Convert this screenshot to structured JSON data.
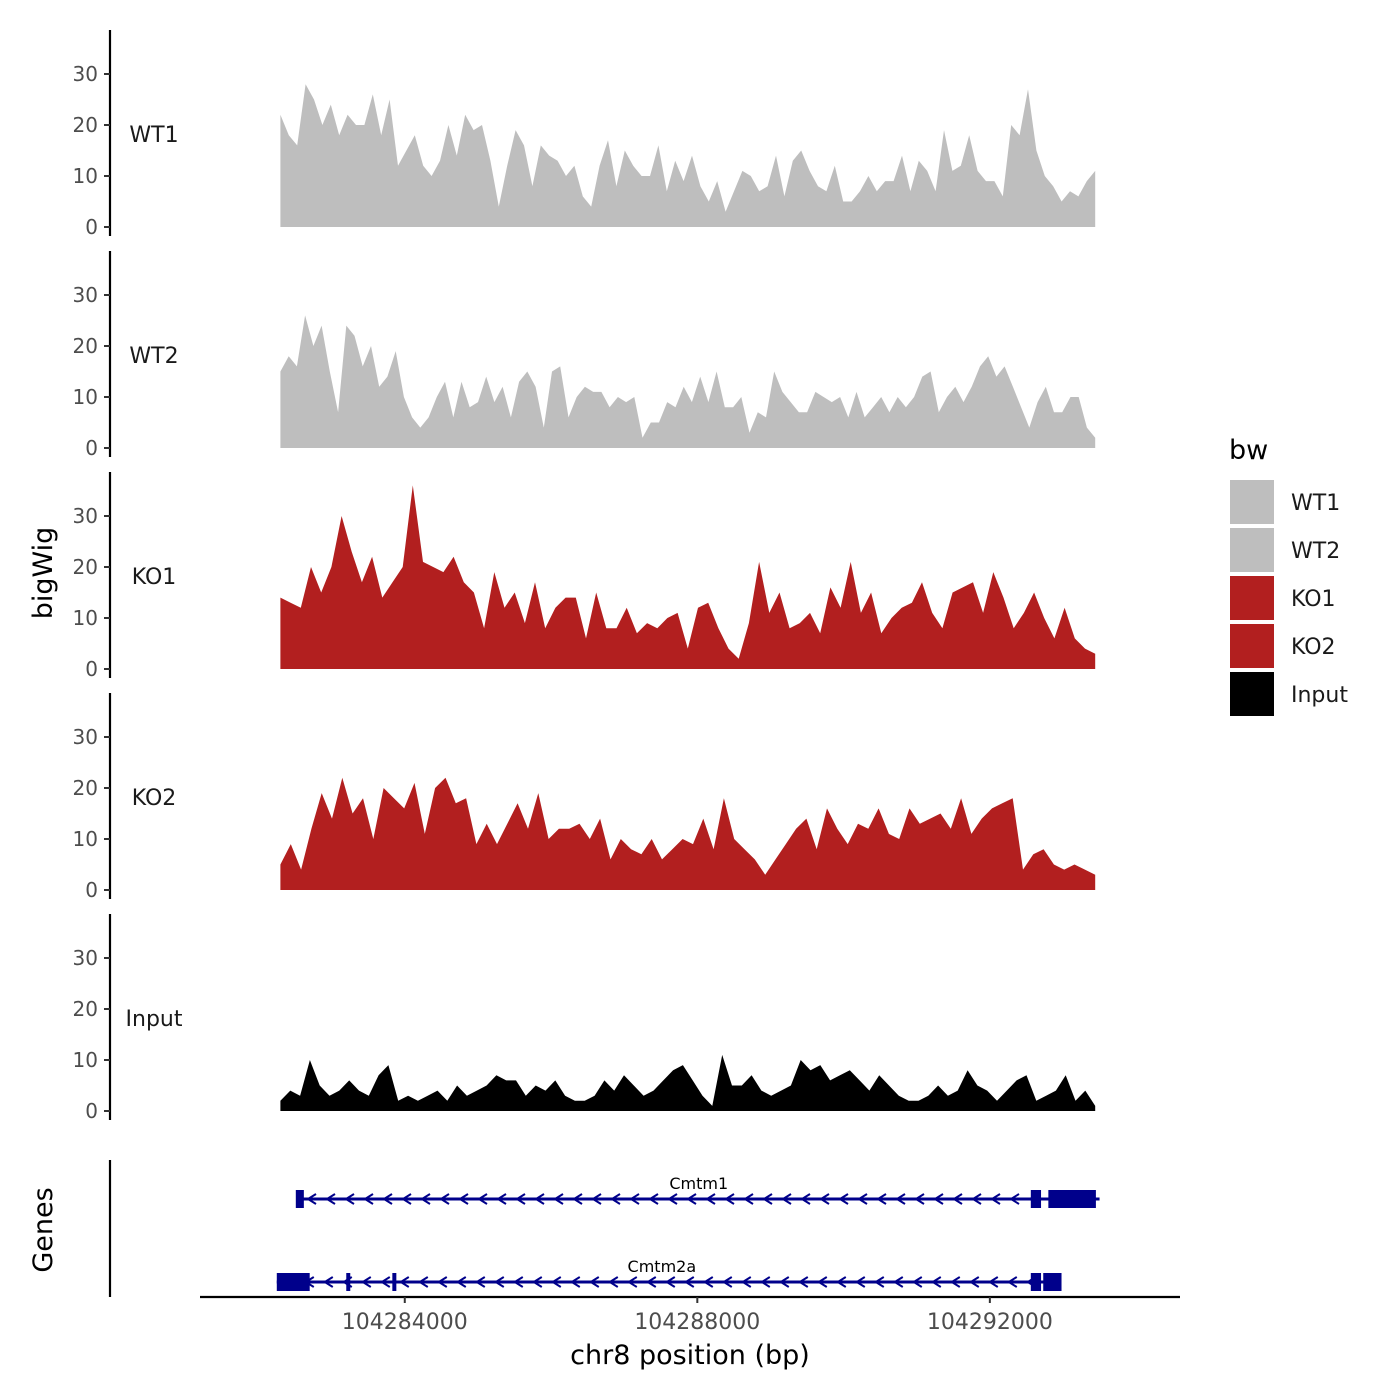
{
  "chart_data": {
    "type": "area",
    "ylabel": "bigWig",
    "xlabel": "chr8 position (bp)",
    "genes_label": "Genes",
    "x_range": [
      104281200,
      104294600
    ],
    "y_range": [
      0,
      40
    ],
    "y_ticks": [
      0,
      10,
      20,
      30
    ],
    "x_ticks": [
      104284000,
      104288000,
      104292000
    ],
    "x_tick_labels": [
      "104284000",
      "104288000",
      "104292000"
    ],
    "legend": {
      "title": "bw",
      "entries": [
        {
          "label": "WT1",
          "color": "#bebebe"
        },
        {
          "label": "WT2",
          "color": "#bebebe"
        },
        {
          "label": "KO1",
          "color": "#b21f1f"
        },
        {
          "label": "KO2",
          "color": "#b21f1f"
        },
        {
          "label": "Input",
          "color": "#000000"
        }
      ]
    },
    "tracks": [
      {
        "name": "WT1",
        "color": "#bebebe",
        "start": 104282300,
        "end": 104293440,
        "values": [
          22,
          18,
          16,
          28,
          25,
          20,
          24,
          18,
          22,
          20,
          20,
          26,
          18,
          25,
          12,
          15,
          18,
          12,
          10,
          13,
          20,
          14,
          22,
          19,
          20,
          13,
          4,
          12,
          19,
          16,
          8,
          16,
          14,
          13,
          10,
          12,
          6,
          4,
          12,
          17,
          8,
          15,
          12,
          10,
          10,
          16,
          7,
          13,
          9,
          14,
          8,
          5,
          9,
          3,
          7,
          11,
          10,
          7,
          8,
          14,
          6,
          13,
          15,
          11,
          8,
          7,
          12,
          5,
          5,
          7,
          10,
          7,
          9,
          9,
          14,
          7,
          13,
          11,
          7,
          19,
          11,
          12,
          18,
          11,
          9,
          9,
          6,
          20,
          18,
          27,
          15,
          10,
          8,
          5,
          7,
          6,
          9,
          11
        ]
      },
      {
        "name": "WT2",
        "color": "#bebebe",
        "start": 104282300,
        "end": 104293440,
        "values": [
          15,
          18,
          16,
          26,
          20,
          24,
          15,
          7,
          24,
          22,
          16,
          20,
          12,
          14,
          19,
          10,
          6,
          4,
          6,
          10,
          13,
          6,
          13,
          8,
          9,
          14,
          9,
          12,
          6,
          13,
          15,
          12,
          4,
          15,
          16,
          6,
          10,
          12,
          11,
          11,
          8,
          10,
          9,
          10,
          2,
          5,
          5,
          9,
          8,
          12,
          9,
          14,
          9,
          15,
          8,
          8,
          10,
          3,
          7,
          6,
          15,
          11,
          9,
          7,
          7,
          11,
          10,
          9,
          10,
          6,
          11,
          6,
          8,
          10,
          7,
          10,
          8,
          10,
          14,
          15,
          7,
          10,
          12,
          9,
          12,
          16,
          18,
          14,
          16,
          12,
          8,
          4,
          9,
          12,
          7,
          7,
          10,
          10,
          4,
          2
        ]
      },
      {
        "name": "KO1",
        "color": "#b21f1f",
        "start": 104282300,
        "end": 104293440,
        "values": [
          14,
          13,
          12,
          20,
          15,
          20,
          30,
          23,
          17,
          22,
          14,
          17,
          20,
          36,
          21,
          20,
          19,
          22,
          17,
          15,
          8,
          19,
          12,
          15,
          9,
          17,
          8,
          12,
          14,
          14,
          6,
          15,
          8,
          8,
          12,
          7,
          9,
          8,
          10,
          11,
          4,
          12,
          13,
          8,
          4,
          2,
          9,
          21,
          11,
          15,
          8,
          9,
          11,
          7,
          16,
          12,
          21,
          11,
          15,
          7,
          10,
          12,
          13,
          17,
          11,
          8,
          15,
          16,
          17,
          11,
          19,
          14,
          8,
          11,
          15,
          10,
          6,
          12,
          6,
          4,
          3
        ]
      },
      {
        "name": "KO2",
        "color": "#b21f1f",
        "start": 104282300,
        "end": 104293440,
        "values": [
          5,
          9,
          4,
          12,
          19,
          14,
          22,
          15,
          18,
          10,
          20,
          18,
          16,
          21,
          11,
          20,
          22,
          17,
          18,
          9,
          13,
          9,
          13,
          17,
          12,
          19,
          10,
          12,
          12,
          13,
          10,
          14,
          6,
          10,
          8,
          7,
          10,
          6,
          8,
          10,
          9,
          14,
          8,
          18,
          10,
          8,
          6,
          3,
          6,
          9,
          12,
          14,
          8,
          16,
          12,
          9,
          13,
          12,
          16,
          11,
          10,
          16,
          13,
          14,
          15,
          12,
          18,
          11,
          14,
          16,
          17,
          18,
          4,
          7,
          8,
          5,
          4,
          5,
          4,
          3
        ]
      },
      {
        "name": "Input",
        "color": "#000000",
        "start": 104282300,
        "end": 104293440,
        "values": [
          2,
          4,
          3,
          10,
          5,
          3,
          4,
          6,
          4,
          3,
          7,
          9,
          2,
          3,
          2,
          3,
          4,
          2,
          5,
          3,
          4,
          5,
          7,
          6,
          6,
          3,
          5,
          4,
          6,
          3,
          2,
          2,
          3,
          6,
          4,
          7,
          5,
          3,
          4,
          6,
          8,
          9,
          6,
          3,
          1,
          11,
          5,
          5,
          7,
          4,
          3,
          4,
          5,
          10,
          8,
          9,
          6,
          7,
          8,
          6,
          4,
          7,
          5,
          3,
          2,
          2,
          3,
          5,
          3,
          4,
          8,
          5,
          4,
          2,
          4,
          6,
          7,
          2,
          3,
          4,
          7,
          2,
          4,
          1
        ]
      }
    ],
    "genes": [
      {
        "name": "Cmtm1",
        "strand": "-",
        "start": 104282540,
        "end": 104293500,
        "exons": [
          [
            104282510,
            104282620
          ],
          [
            104292560,
            104292700
          ],
          [
            104292800,
            104293450
          ]
        ]
      },
      {
        "name": "Cmtm2a",
        "strand": "-",
        "start": 104282250,
        "end": 104292780,
        "exons": [
          [
            104282250,
            104282700
          ],
          [
            104283200,
            104283250
          ],
          [
            104283830,
            104283880
          ],
          [
            104292560,
            104292700
          ],
          [
            104292730,
            104292980
          ]
        ]
      }
    ]
  }
}
